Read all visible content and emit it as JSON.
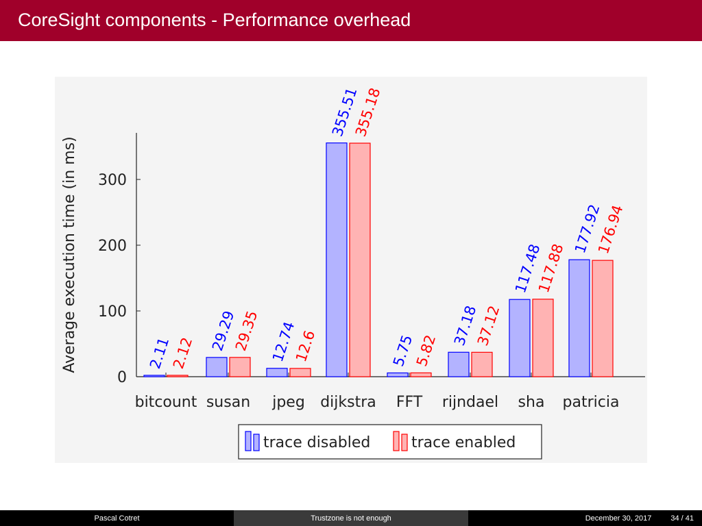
{
  "slide": {
    "title": "CoreSight components - Performance overhead"
  },
  "footer": {
    "author": "Pascal Cotret",
    "subtitle": "Trustzone is not enough",
    "date": "December 30, 2017",
    "page": "34 / 41"
  },
  "colors": {
    "title_bar": "#a0002a",
    "series_disabled_fill": "#b3b3ff",
    "series_disabled_stroke": "#0000ff",
    "series_enabled_fill": "#ffb3b3",
    "series_enabled_stroke": "#ff0000"
  },
  "chart_data": {
    "type": "bar",
    "categories": [
      "bitcount",
      "susan",
      "jpeg",
      "dijkstra",
      "FFT",
      "rijndael",
      "sha",
      "patricia"
    ],
    "series": [
      {
        "name": "trace disabled",
        "values": [
          2.11,
          29.29,
          12.74,
          355.51,
          5.75,
          37.18,
          117.48,
          177.92
        ],
        "labels": [
          "2.11",
          "29.29",
          "12.74",
          "355.51",
          "5.75",
          "37.18",
          "117.48",
          "177.92"
        ]
      },
      {
        "name": "trace enabled",
        "values": [
          2.12,
          29.35,
          12.6,
          355.18,
          5.82,
          37.12,
          117.88,
          176.94
        ],
        "labels": [
          "2.12",
          "29.35",
          "12.6",
          "355.18",
          "5.82",
          "37.12",
          "117.88",
          "176.94"
        ]
      }
    ],
    "title": "",
    "xlabel": "",
    "ylabel": "Average execution time (in ms)",
    "ylim": [
      0,
      367
    ],
    "yticks": [
      "0",
      "100",
      "200",
      "300"
    ],
    "grid": false,
    "legend_position": "bottom-center",
    "data_labels": "rotated"
  }
}
